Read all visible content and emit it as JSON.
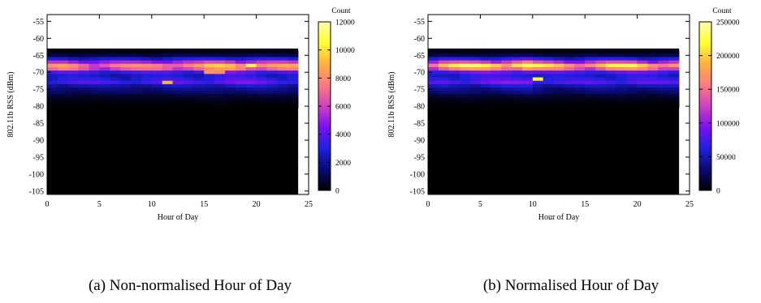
{
  "chart_data": [
    {
      "type": "heatmap",
      "caption": "(a) Non-normalised Hour of Day",
      "xlabel": "Hour of Day",
      "ylabel": "802.11b RSS (dBm)",
      "xlim": [
        0,
        25
      ],
      "ylim": [
        -106,
        -53
      ],
      "xticks": [
        0,
        5,
        10,
        15,
        20,
        25
      ],
      "yticks": [
        -55,
        -60,
        -65,
        -70,
        -75,
        -80,
        -85,
        -90,
        -95,
        -100,
        -105
      ],
      "x_tick_labels": [
        "0",
        "5",
        "10",
        "15",
        "20",
        "25"
      ],
      "y_tick_labels": [
        "-55",
        "-60",
        "-65",
        "-70",
        "-75",
        "-80",
        "-85",
        "-90",
        "-95",
        "-100",
        "-105"
      ],
      "data_x_range": [
        0,
        24
      ],
      "data_y_range": [
        -106,
        -63
      ],
      "colorbar": {
        "label": "Count",
        "min": 0,
        "max": 12000,
        "ticks": [
          0,
          2000,
          4000,
          6000,
          8000,
          10000,
          12000
        ],
        "tick_labels": [
          "0",
          "2000",
          "4000",
          "6000",
          "8000",
          "10000",
          "12000"
        ]
      },
      "colormap": [
        "#000000",
        "#0a0a74",
        "#2020e0",
        "#7a10f0",
        "#d040c0",
        "#ff7a80",
        "#ffb040",
        "#ffff30",
        "#ffffb0"
      ],
      "rss_rows": [
        -64,
        -65,
        -66,
        -67,
        -68,
        -69,
        -70,
        -71,
        -72,
        -73,
        -74,
        -75,
        -76,
        -77,
        -78,
        -79,
        -80
      ],
      "row_profile": [
        300,
        900,
        2600,
        5000,
        7500,
        6500,
        3500,
        2600,
        3000,
        3600,
        2200,
        1600,
        1200,
        600,
        350,
        150,
        60
      ],
      "hour_profile": [
        0.95,
        1.0,
        0.98,
        0.95,
        0.93,
        0.92,
        0.92,
        0.92,
        0.93,
        0.95,
        0.98,
        1.02,
        1.02,
        1.0,
        1.0,
        1.08,
        1.12,
        1.15,
        1.12,
        1.1,
        1.08,
        1.05,
        1.02,
        1.0
      ],
      "hotspots": [
        {
          "hour": 11,
          "rss": -73,
          "value": 9000
        },
        {
          "hour": 19,
          "rss": -68,
          "value": 10500
        },
        {
          "hour": 15,
          "rss": -70,
          "value": 8200
        },
        {
          "hour": 16,
          "rss": -70,
          "value": 8000
        }
      ]
    },
    {
      "type": "heatmap",
      "caption": "(b) Normalised Hour of Day",
      "xlabel": "Hour of Day",
      "ylabel": "802.11b RSS (dBm)",
      "xlim": [
        0,
        25
      ],
      "ylim": [
        -106,
        -53
      ],
      "xticks": [
        0,
        5,
        10,
        15,
        20,
        25
      ],
      "yticks": [
        -55,
        -60,
        -65,
        -70,
        -75,
        -80,
        -85,
        -90,
        -95,
        -100,
        -105
      ],
      "x_tick_labels": [
        "0",
        "5",
        "10",
        "15",
        "20",
        "25"
      ],
      "y_tick_labels": [
        "-55",
        "-60",
        "-65",
        "-70",
        "-75",
        "-80",
        "-85",
        "-90",
        "-95",
        "-100",
        "-105"
      ],
      "data_x_range": [
        0,
        24
      ],
      "data_y_range": [
        -106,
        -63
      ],
      "colorbar": {
        "label": "Count",
        "min": 0,
        "max": 250000,
        "ticks": [
          0,
          50000,
          100000,
          150000,
          200000,
          250000
        ],
        "tick_labels": [
          "0",
          "50000",
          "100000",
          "150000",
          "200000",
          "250000"
        ]
      },
      "colormap": [
        "#000000",
        "#0a0a74",
        "#2020e0",
        "#7a10f0",
        "#d040c0",
        "#ff7a80",
        "#ffb040",
        "#ffff30",
        "#ffffb0"
      ],
      "rss_rows": [
        -64,
        -65,
        -66,
        -67,
        -68,
        -69,
        -70,
        -71,
        -72,
        -73,
        -74,
        -75,
        -76,
        -77,
        -78,
        -79,
        -80
      ],
      "row_profile": [
        6000,
        18000,
        55000,
        110000,
        180000,
        140000,
        75000,
        55000,
        62000,
        75000,
        46000,
        33000,
        25000,
        12000,
        7000,
        3000,
        1200
      ],
      "hour_profile": [
        0.95,
        1.05,
        1.05,
        1.08,
        1.1,
        1.12,
        1.12,
        1.15,
        1.18,
        1.25,
        1.05,
        1.0,
        0.98,
        0.95,
        0.95,
        1.0,
        1.02,
        1.05,
        1.05,
        1.08,
        1.05,
        1.02,
        1.0,
        0.98
      ],
      "hotspots": [
        {
          "hour": 9,
          "rss": -68,
          "value": 230000
        },
        {
          "hour": 10,
          "rss": -72,
          "value": 215000
        },
        {
          "hour": 19,
          "rss": -68,
          "value": 225000
        },
        {
          "hour": 6,
          "rss": -68,
          "value": 200000
        }
      ]
    }
  ]
}
